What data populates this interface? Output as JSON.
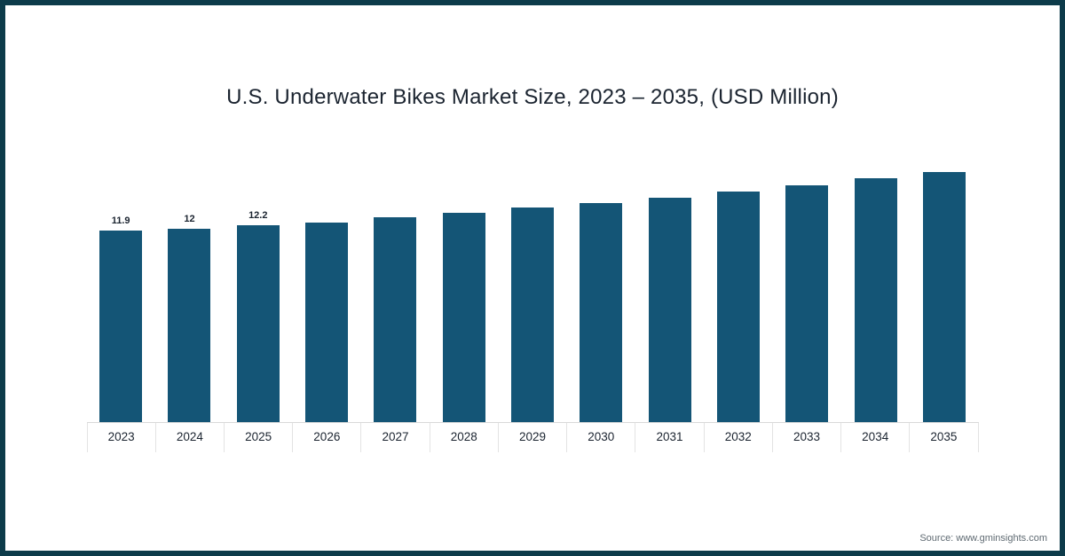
{
  "frame": {
    "border_color": "#0d3b4a",
    "background": "#ffffff"
  },
  "title": "U.S. Underwater Bikes Market Size, 2023 – 2035, (USD Million)",
  "source": "Source: www.gminsights.com",
  "chart_data": {
    "type": "bar",
    "title": "U.S. Underwater Bikes Market Size, 2023 – 2035, (USD Million)",
    "categories": [
      "2023",
      "2024",
      "2025",
      "2026",
      "2027",
      "2028",
      "2029",
      "2030",
      "2031",
      "2032",
      "2033",
      "2034",
      "2035"
    ],
    "values": [
      11.9,
      12,
      12.2,
      12.4,
      12.7,
      13,
      13.3,
      13.6,
      13.9,
      14.3,
      14.7,
      15.1,
      15.5
    ],
    "data_labels": [
      "11.9",
      "12",
      "12.2",
      null,
      null,
      null,
      null,
      null,
      null,
      null,
      null,
      null,
      null
    ],
    "bar_color": "#145576",
    "xlabel": "",
    "ylabel": "USD Million",
    "ylim": [
      0,
      16.5
    ],
    "grid": false,
    "legend": false,
    "legend_position": "none"
  }
}
